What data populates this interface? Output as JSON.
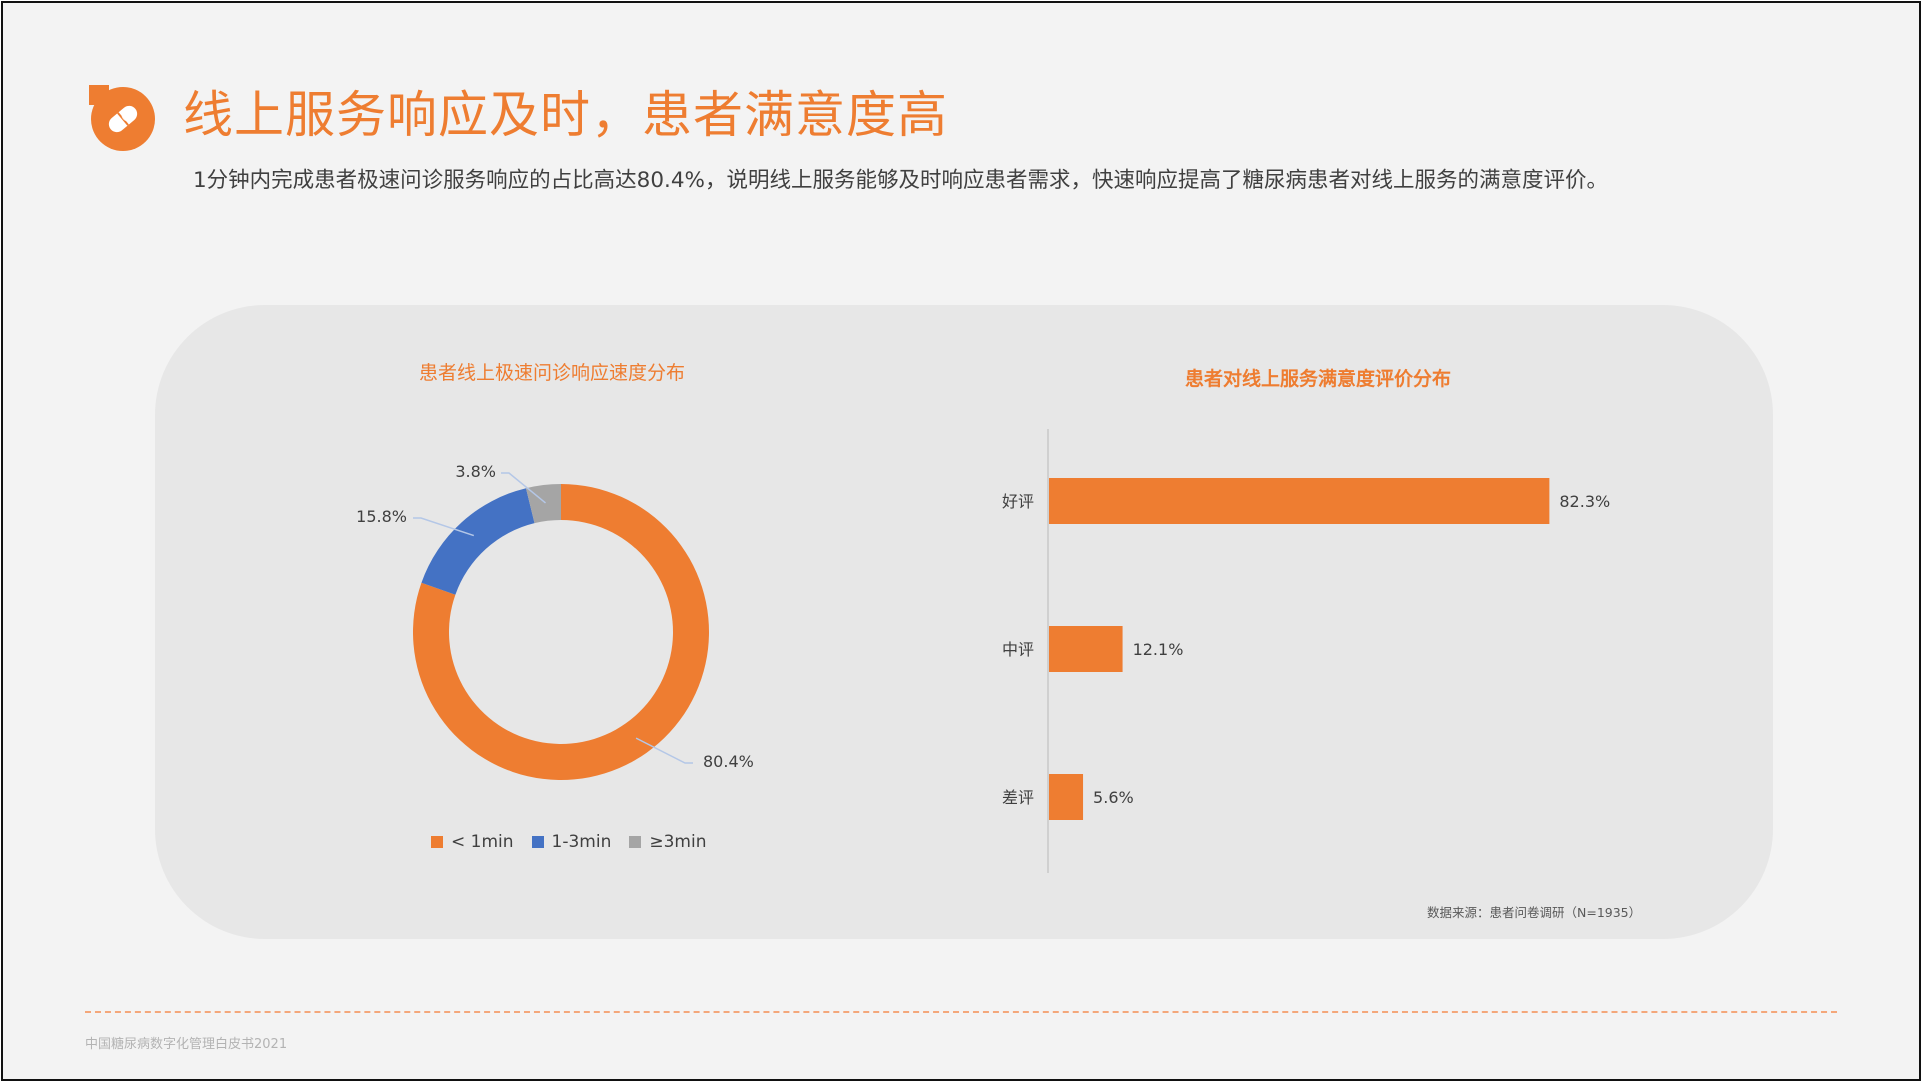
{
  "header": {
    "title": "线上服务响应及时，患者满意度高",
    "subtitle": "1分钟内完成患者极速问诊服务响应的占比高达80.4%，说明线上服务能够及时响应患者需求，快速响应提高了糖尿病患者对线上服务的满意度评价。"
  },
  "colors": {
    "accent": "#ee7d31",
    "blue": "#4472c4",
    "gray": "#a5a5a5"
  },
  "chart_data": [
    {
      "type": "pie",
      "title": "患者线上极速问诊响应速度分布",
      "categories": [
        "< 1min",
        "1-3min",
        "≥3min"
      ],
      "values": [
        80.4,
        15.8,
        3.8
      ],
      "labels": [
        "80.4%",
        "15.8%",
        "3.8%"
      ],
      "colors": [
        "#ee7d31",
        "#4472c4",
        "#a5a5a5"
      ],
      "legend": "bottom"
    },
    {
      "type": "bar",
      "orientation": "horizontal",
      "title": "患者对线上服务满意度评价分布",
      "categories": [
        "好评",
        "中评",
        "差评"
      ],
      "values": [
        82.3,
        12.1,
        5.6
      ],
      "labels": [
        "82.3%",
        "12.1%",
        "5.6%"
      ],
      "color": "#ee7d31",
      "xlim": [
        0,
        100
      ]
    }
  ],
  "source_note": "数据来源：患者问卷调研（N=1935）",
  "footer": "中国糖尿病数字化管理白皮书2021"
}
